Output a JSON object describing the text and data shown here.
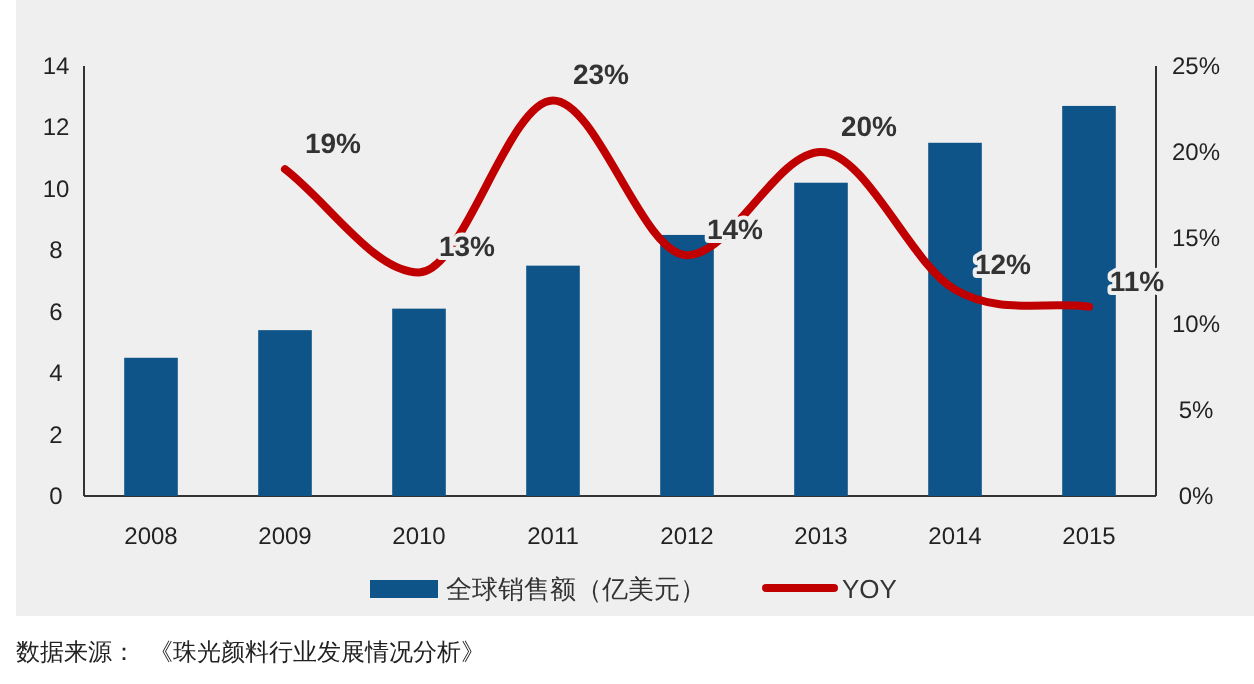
{
  "chart_data": {
    "type": "bar",
    "categories": [
      "2008",
      "2009",
      "2010",
      "2011",
      "2012",
      "2013",
      "2014",
      "2015"
    ],
    "series": [
      {
        "name": "全球销售额（亿美元）",
        "color": "#0e5488",
        "values": [
          4.5,
          5.4,
          6.1,
          7.5,
          8.5,
          10.2,
          11.5,
          12.7
        ]
      },
      {
        "name": "YOY",
        "type": "line",
        "axis": "y2",
        "color": "#c00000",
        "values": [
          null,
          19,
          13,
          23,
          14,
          20,
          12,
          11
        ],
        "value_labels": [
          null,
          "19%",
          "13%",
          "23%",
          "14%",
          "20%",
          "12%",
          "11%"
        ]
      }
    ],
    "ylim": [
      0,
      14
    ],
    "yticks": [
      0,
      2,
      4,
      6,
      8,
      10,
      12,
      14
    ],
    "y2lim": [
      0,
      25
    ],
    "y2ticks": [
      {
        "value": 0,
        "label": "0%"
      },
      {
        "value": 5,
        "label": "5%"
      },
      {
        "value": 10,
        "label": "10%"
      },
      {
        "value": 15,
        "label": "15%"
      },
      {
        "value": 20,
        "label": "20%"
      },
      {
        "value": 25,
        "label": "25%"
      }
    ],
    "legend": "bottom",
    "grid": false,
    "annotations": [
      "数据来源：  《珠光颜料行业发展情况分析》"
    ]
  }
}
